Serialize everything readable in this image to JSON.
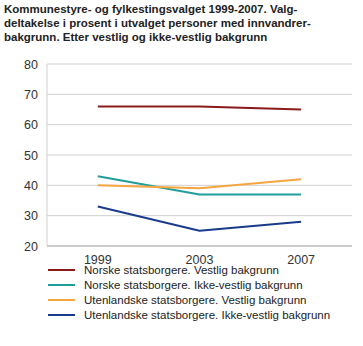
{
  "chart_data": {
    "type": "line",
    "title": "Kommunestyre- og fylkestingsvalget 1999-2007. Valg-\ndeltakelse i prosent i utvalget personer med innvandrer-\nbakgrunn. Etter vestlig og ikke-vestlig bakgrunn",
    "categories": [
      "1999",
      "2003",
      "2007"
    ],
    "series": [
      {
        "name": "Norske statsborgere. Vestlig bakgrunn",
        "color": "#8b1a1a",
        "values": [
          66,
          66,
          65
        ]
      },
      {
        "name": "Norske statsborgere. Ikke-vestlig bakgrunn",
        "color": "#1f9e9a",
        "values": [
          43,
          37,
          37
        ]
      },
      {
        "name": "Utenlandske statsborgere. Vestlig bakgrunn",
        "color": "#f4a640",
        "values": [
          40,
          39,
          42
        ]
      },
      {
        "name": "Utenlandske statsborgere. Ikke-vestlig bakgrunn",
        "color": "#1a3b8c",
        "values": [
          33,
          25,
          28
        ]
      }
    ],
    "ylim": [
      20,
      80
    ],
    "yticks": [
      20,
      30,
      40,
      50,
      60,
      70,
      80
    ],
    "grid": true,
    "legend": "bottom"
  }
}
